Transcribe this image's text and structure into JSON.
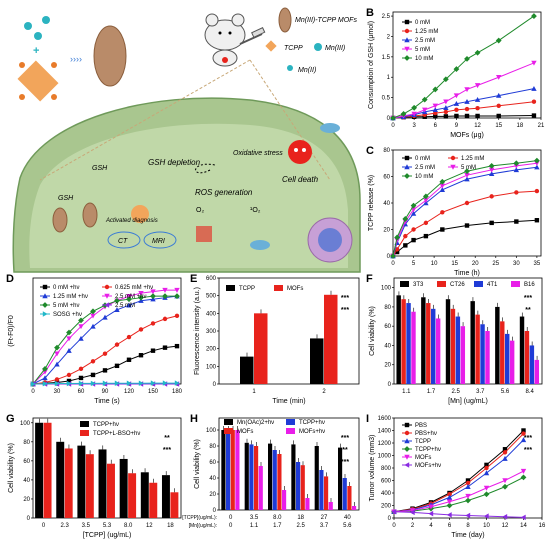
{
  "figure": {
    "schematic": {
      "panel_label": "A",
      "legend": {
        "mof_label": "Mn(III)-TCPP MOFs",
        "tcpp_label": "TCPP",
        "mn3_label": "Mn(III)",
        "mn2_label": "Mn(II)"
      },
      "labels": {
        "gsh_depletion": "GSH depletion",
        "oxidative_stress": "Oxidative stress",
        "cell_death": "Cell death",
        "ros_generation": "ROS generation",
        "gsh1": "GSH",
        "gsh2": "GSH",
        "activated_diagnosis": "Activated diagnosis",
        "o2": "O₂",
        "singlet_o2": "¹O₂",
        "ct": "CT",
        "mri": "MRI"
      }
    },
    "colors": {
      "black": "#000000",
      "red": "#e8231c",
      "blue": "#1f3bd6",
      "magenta": "#e81ee8",
      "green": "#1f8a2b",
      "purple": "#8a2be2",
      "cyan": "#21b8c9",
      "tissue": "#9fbf86"
    }
  },
  "chart_data": [
    {
      "panel": "B",
      "type": "line",
      "xlabel": "MOFs (μg)",
      "ylabel": "Consumption of GSH (μmol)",
      "x": [
        0,
        1.5,
        3,
        4.5,
        6,
        7.5,
        9,
        10.5,
        12,
        15,
        20
      ],
      "xticks": [
        0,
        3,
        6,
        9,
        12,
        15,
        18,
        21
      ],
      "xlim": [
        0,
        21
      ],
      "yticks": [
        0.0,
        0.5,
        1.0,
        1.5,
        2.0,
        2.5
      ],
      "ylim": [
        0,
        2.6
      ],
      "series": [
        {
          "name": "0 mM",
          "color": "#000000",
          "marker": "square",
          "values": [
            0,
            0.02,
            0.03,
            0.03,
            0.04,
            0.04,
            0.05,
            0.05,
            0.05,
            0.05,
            0.06
          ]
        },
        {
          "name": "1.25 mM",
          "color": "#e8231c",
          "marker": "circle",
          "values": [
            0,
            0.02,
            0.05,
            0.08,
            0.12,
            0.15,
            0.2,
            0.22,
            0.24,
            0.3,
            0.4
          ]
        },
        {
          "name": "2.5 mM",
          "color": "#1f3bd6",
          "marker": "triangle",
          "values": [
            0,
            0.03,
            0.08,
            0.15,
            0.2,
            0.25,
            0.35,
            0.4,
            0.45,
            0.55,
            0.72
          ]
        },
        {
          "name": "5 mM",
          "color": "#e81ee8",
          "marker": "triangle-down",
          "values": [
            0,
            0.05,
            0.1,
            0.2,
            0.3,
            0.4,
            0.55,
            0.7,
            0.8,
            1.0,
            1.35
          ]
        },
        {
          "name": "10 mM",
          "color": "#1f8a2b",
          "marker": "diamond",
          "values": [
            0,
            0.1,
            0.25,
            0.45,
            0.7,
            0.95,
            1.2,
            1.45,
            1.6,
            1.9,
            2.5
          ]
        }
      ]
    },
    {
      "panel": "C",
      "type": "line",
      "xlabel": "Time (h)",
      "ylabel": "TCPP release (%)",
      "x": [
        0,
        1,
        3,
        5,
        8,
        12,
        18,
        24,
        30,
        35
      ],
      "xticks": [
        0,
        5,
        10,
        15,
        20,
        25,
        30,
        35
      ],
      "xlim": [
        0,
        36
      ],
      "yticks": [
        0,
        20,
        40,
        60,
        80
      ],
      "ylim": [
        0,
        80
      ],
      "series": [
        {
          "name": "0 mM",
          "color": "#000000",
          "marker": "square",
          "values": [
            0,
            3,
            8,
            12,
            15,
            20,
            23,
            25,
            26,
            27
          ]
        },
        {
          "name": "1.25 mM",
          "color": "#e8231c",
          "marker": "circle",
          "values": [
            0,
            5,
            15,
            20,
            25,
            33,
            40,
            45,
            48,
            49
          ]
        },
        {
          "name": "2.5 mM",
          "color": "#1f3bd6",
          "marker": "triangle",
          "values": [
            0,
            10,
            24,
            32,
            40,
            50,
            58,
            62,
            65,
            67
          ]
        },
        {
          "name": "5 mM",
          "color": "#e81ee8",
          "marker": "triangle-down",
          "values": [
            0,
            12,
            26,
            35,
            42,
            53,
            61,
            65,
            68,
            70
          ]
        },
        {
          "name": "10 mM",
          "color": "#1f8a2b",
          "marker": "diamond",
          "values": [
            0,
            14,
            28,
            38,
            45,
            56,
            64,
            68,
            70,
            72
          ]
        }
      ]
    },
    {
      "panel": "D",
      "type": "line",
      "xlabel": "Time (s)",
      "ylabel": "(Ft-F0)/F0",
      "x": [
        0,
        15,
        30,
        45,
        60,
        75,
        90,
        105,
        120,
        135,
        150,
        165,
        180
      ],
      "xticks": [
        0,
        30,
        60,
        90,
        120,
        150,
        180
      ],
      "xlim": [
        0,
        185
      ],
      "ylim": [
        0,
        70
      ],
      "series": [
        {
          "name": "0 mM +hν",
          "color": "#000000",
          "marker": "square",
          "values": [
            0,
            0.5,
            1,
            2,
            4,
            6,
            9,
            12,
            16,
            19,
            22,
            24,
            25
          ]
        },
        {
          "name": "0.625 mM +hν",
          "color": "#e8231c",
          "marker": "circle",
          "values": [
            0,
            1,
            3,
            6,
            10,
            15,
            20,
            26,
            31,
            36,
            40,
            43,
            45
          ]
        },
        {
          "name": "1.25 mM +hν",
          "color": "#1f3bd6",
          "marker": "triangle",
          "values": [
            0,
            4,
            13,
            22,
            30,
            38,
            44,
            49,
            52,
            55,
            56,
            57,
            58
          ]
        },
        {
          "name": "2.5 mM +hν",
          "color": "#e81ee8",
          "marker": "triangle-down",
          "values": [
            0,
            8,
            20,
            30,
            38,
            45,
            51,
            55,
            58,
            60,
            61,
            62,
            62
          ]
        },
        {
          "name": "5 mM +hν",
          "color": "#1f8a2b",
          "marker": "diamond",
          "values": [
            0,
            10,
            24,
            34,
            42,
            48,
            52,
            55,
            56,
            57,
            58,
            58,
            58
          ]
        },
        {
          "name": "2.5 mM",
          "color": "#8a2be2",
          "marker": "triangle-left",
          "values": [
            0,
            0,
            0,
            0,
            0,
            0,
            0,
            0,
            0,
            0,
            0,
            0,
            0
          ]
        },
        {
          "name": "SOSG +hν",
          "color": "#21b8c9",
          "marker": "triangle-right",
          "values": [
            0,
            0.2,
            0.3,
            0.3,
            0.4,
            0.4,
            0.5,
            0.5,
            0.5,
            0.5,
            0.6,
            0.6,
            0.6
          ]
        }
      ]
    },
    {
      "panel": "E",
      "type": "bar",
      "xlabel": "Time (min)",
      "ylabel": "Fluorescence intensity (a.u.)",
      "categories": [
        "1",
        "2"
      ],
      "yticks": [
        0,
        100,
        200,
        300,
        400,
        500,
        600
      ],
      "ylim": [
        0,
        600
      ],
      "annotations": [
        "***",
        "***"
      ],
      "series": [
        {
          "name": "TCPP",
          "color": "#000000",
          "values": [
            155,
            258
          ]
        },
        {
          "name": "MOFs",
          "color": "#e8231c",
          "values": [
            400,
            505
          ]
        }
      ]
    },
    {
      "panel": "F",
      "type": "bar",
      "xlabel": "[Mn] (ug/mL)",
      "ylabel": "Cell viability (%)",
      "categories": [
        "1.1",
        "1.7",
        "2.5",
        "3.7",
        "5.6",
        "8.4"
      ],
      "yticks": [
        0,
        20,
        40,
        60,
        80,
        100
      ],
      "ylim": [
        0,
        110
      ],
      "annotations": [
        "***",
        "**"
      ],
      "series": [
        {
          "name": "3T3",
          "color": "#000000",
          "values": [
            92,
            90,
            88,
            86,
            80,
            70
          ]
        },
        {
          "name": "CT26",
          "color": "#e8231c",
          "values": [
            88,
            84,
            78,
            72,
            65,
            55
          ]
        },
        {
          "name": "4T1",
          "color": "#1f3bd6",
          "values": [
            84,
            78,
            70,
            62,
            52,
            40
          ]
        },
        {
          "name": "B16",
          "color": "#e81ee8",
          "values": [
            75,
            68,
            60,
            55,
            45,
            25
          ]
        }
      ]
    },
    {
      "panel": "G",
      "type": "bar",
      "xlabel": "[TCPP] (ug/mL)",
      "ylabel": "Cell viability (%)",
      "categories": [
        "0",
        "2.3",
        "3.5",
        "5.3",
        "8.0",
        "12",
        "18"
      ],
      "yticks": [
        0,
        20,
        40,
        60,
        80,
        100
      ],
      "ylim": [
        0,
        105
      ],
      "annotations": [
        "**",
        "***"
      ],
      "series": [
        {
          "name": "TCPP+hν",
          "color": "#000000",
          "values": [
            100,
            80,
            76,
            72,
            62,
            48,
            45
          ]
        },
        {
          "name": "TCPP+L-BSO+hν",
          "color": "#e8231c",
          "values": [
            100,
            73,
            67,
            57,
            47,
            37,
            27
          ]
        }
      ]
    },
    {
      "panel": "H",
      "type": "bar",
      "xlabel_rows": [
        "[TCPP](ug/mL):",
        "[Mn](ug/mL):"
      ],
      "ylabel": "Cell viability (%)",
      "categories": [
        "0",
        "3.5",
        "8.0",
        "18",
        "27",
        "40"
      ],
      "categories2": [
        "0",
        "1.1",
        "1.7",
        "2.5",
        "3.7",
        "5.6"
      ],
      "yticks": [
        0,
        20,
        40,
        60,
        80,
        100
      ],
      "ylim": [
        0,
        115
      ],
      "annotations": [
        "***",
        "**",
        "***"
      ],
      "series": [
        {
          "name": "Mn(OAc)2+hν",
          "color": "#000000",
          "values": [
            100,
            84,
            83,
            82,
            80,
            78
          ]
        },
        {
          "name": "TCPP+hν",
          "color": "#1f3bd6",
          "values": [
            100,
            82,
            75,
            60,
            50,
            40
          ]
        },
        {
          "name": "MOFs",
          "color": "#e8231c",
          "values": [
            100,
            80,
            70,
            56,
            42,
            30
          ]
        },
        {
          "name": "MOFs+hν",
          "color": "#e81ee8",
          "values": [
            100,
            55,
            25,
            15,
            10,
            5
          ]
        }
      ]
    },
    {
      "panel": "I",
      "type": "line",
      "xlabel": "Time (day)",
      "ylabel": "Tumor volume (mm3)",
      "x": [
        0,
        2,
        4,
        6,
        8,
        10,
        12,
        14
      ],
      "xticks": [
        0,
        2,
        4,
        6,
        8,
        10,
        12,
        14,
        16
      ],
      "xlim": [
        0,
        16
      ],
      "yticks": [
        0,
        200,
        400,
        600,
        800,
        1000,
        1200,
        1400,
        1600
      ],
      "ylim": [
        0,
        1600
      ],
      "annotations": [
        "***",
        "***"
      ],
      "series": [
        {
          "name": "PBS",
          "color": "#000000",
          "marker": "square",
          "values": [
            100,
            150,
            250,
            400,
            600,
            850,
            1100,
            1400
          ]
        },
        {
          "name": "PBS+hν",
          "color": "#e8231c",
          "marker": "circle",
          "values": [
            100,
            140,
            230,
            380,
            560,
            800,
            1050,
            1350
          ]
        },
        {
          "name": "TCPP",
          "color": "#1f3bd6",
          "marker": "triangle",
          "values": [
            100,
            130,
            210,
            330,
            500,
            720,
            950,
            1250
          ]
        },
        {
          "name": "TCPP+hν",
          "color": "#1f8a2b",
          "marker": "diamond",
          "values": [
            100,
            110,
            150,
            200,
            280,
            380,
            500,
            650
          ]
        },
        {
          "name": "MOFs",
          "color": "#e81ee8",
          "marker": "triangle-down",
          "values": [
            100,
            120,
            180,
            260,
            350,
            480,
            600,
            750
          ]
        },
        {
          "name": "MOFs+hν",
          "color": "#8a2be2",
          "marker": "triangle-left",
          "values": [
            100,
            90,
            70,
            50,
            40,
            30,
            20,
            10
          ]
        }
      ]
    }
  ]
}
